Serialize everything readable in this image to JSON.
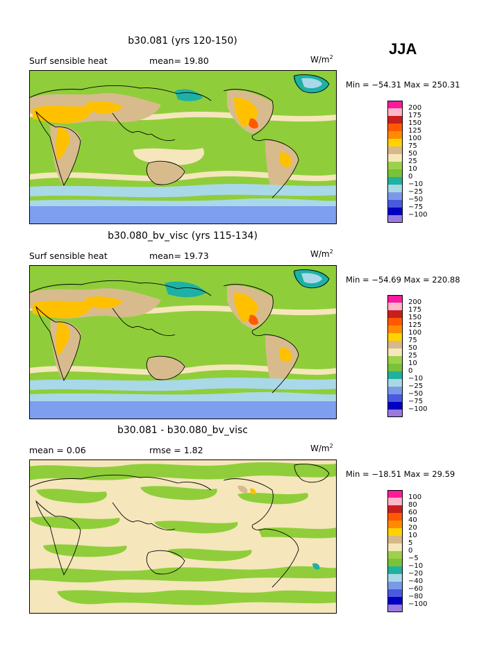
{
  "page": {
    "season": "JJA",
    "units_base": "W/m",
    "units_exp": "2"
  },
  "panels": [
    {
      "title": "b30.081 (yrs 120-150)",
      "left_label": "Surf sensible heat",
      "mid_label": "mean=  19.80",
      "minmax": "Min = −54.31  Max = 250.31",
      "legend_labels": [
        "200",
        "175",
        "150",
        "125",
        "100",
        "75",
        "50",
        "25",
        "10",
        "0",
        "−10",
        "−25",
        "−50",
        "−75",
        "−100"
      ]
    },
    {
      "title": "b30.080_bv_visc (yrs 115-134)",
      "left_label": "Surf sensible heat",
      "mid_label": "mean=  19.73",
      "minmax": "Min = −54.69  Max = 220.88",
      "legend_labels": [
        "200",
        "175",
        "150",
        "125",
        "100",
        "75",
        "50",
        "25",
        "10",
        "0",
        "−10",
        "−25",
        "−50",
        "−75",
        "−100"
      ]
    },
    {
      "title": "b30.081 - b30.080_bv_visc",
      "left_label": "mean =    0.06",
      "mid_label": "rmse =    1.82",
      "minmax": "Min = −18.51  Max =  29.59",
      "legend_labels": [
        "100",
        "80",
        "60",
        "40",
        "20",
        "10",
        "5",
        "0",
        "−5",
        "−10",
        "−20",
        "−40",
        "−60",
        "−80",
        "−100"
      ]
    }
  ],
  "colors": {
    "legend_boxes": [
      "#ff1a9c",
      "#ffb6c8",
      "#c81e1e",
      "#ff5a00",
      "#ff8c00",
      "#ffd200",
      "#d6b88a",
      "#f5e6bc",
      "#9cd14a",
      "#79c23a",
      "#20b0a0",
      "#a8d8e6",
      "#7a9ae8",
      "#4a5ae0",
      "#0000c0",
      "#9a7ae0"
    ],
    "ocean_main": "#8fce3a",
    "tan": "#d8bb8d",
    "cream": "#f5e6bc",
    "orange": "#ffc000",
    "teal": "#1fb0a5",
    "light_blue": "#a9d9e8",
    "blue": "#7e9ef0"
  }
}
